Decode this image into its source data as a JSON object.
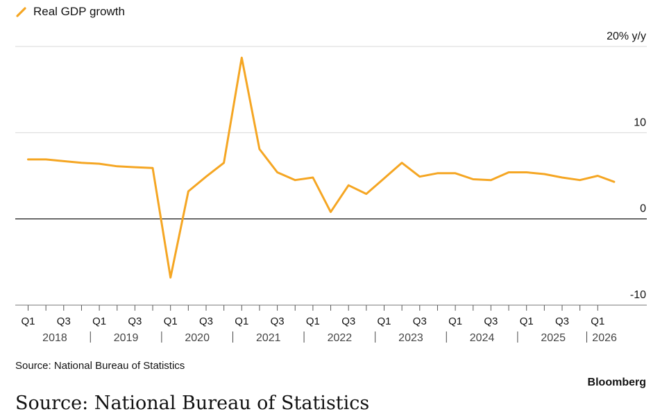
{
  "legend": {
    "label": "Real GDP growth",
    "color": "#f5a623"
  },
  "source_text": "Source: National Bureau of Statistics",
  "brand": "Bloomberg",
  "chart_data": {
    "type": "line",
    "ylim": [
      -10,
      20
    ],
    "yticks": [
      {
        "value": 20,
        "label": "20% y/y"
      },
      {
        "value": 10,
        "label": "10"
      },
      {
        "value": 0,
        "label": "0"
      },
      {
        "value": -10,
        "label": "-10"
      }
    ],
    "grid": true,
    "legend_position": "top-left",
    "series": [
      {
        "name": "Real GDP growth",
        "color": "#f5a623",
        "x": [
          "2018 Q1",
          "2018 Q2",
          "2018 Q3",
          "2018 Q4",
          "2019 Q1",
          "2019 Q2",
          "2019 Q3",
          "2019 Q4",
          "2020 Q1",
          "2020 Q2",
          "2020 Q3",
          "2020 Q4",
          "2021 Q1",
          "2021 Q2",
          "2021 Q3",
          "2021 Q4",
          "2022 Q1",
          "2022 Q2",
          "2022 Q3",
          "2022 Q4",
          "2023 Q1",
          "2023 Q2",
          "2023 Q3",
          "2023 Q4",
          "2024 Q1",
          "2024 Q2",
          "2024 Q3",
          "2024 Q4",
          "2025 Q1",
          "2025 Q2",
          "2025 Q3",
          "2025 Q4",
          "2026 Q1"
        ],
        "values": [
          6.9,
          6.9,
          6.7,
          6.5,
          6.4,
          6.1,
          6.0,
          5.9,
          -6.8,
          3.2,
          4.9,
          6.5,
          18.7,
          8.1,
          5.4,
          4.5,
          4.8,
          0.8,
          3.9,
          2.9,
          4.7,
          6.5,
          4.9,
          5.3,
          5.3,
          4.6,
          4.5,
          5.4,
          5.4,
          5.2,
          4.8,
          4.5,
          5.0
        ],
        "extra_end_value": 4.3
      }
    ],
    "quarter_ticks": [
      "Q1",
      "Q3",
      "Q1",
      "Q3",
      "Q1",
      "Q3",
      "Q1",
      "Q3",
      "Q1",
      "Q3",
      "Q1",
      "Q3",
      "Q1",
      "Q3",
      "Q1",
      "Q3",
      "Q1"
    ],
    "years": [
      "2018",
      "2019",
      "2020",
      "2021",
      "2022",
      "2023",
      "2024",
      "2025",
      "2026"
    ]
  }
}
